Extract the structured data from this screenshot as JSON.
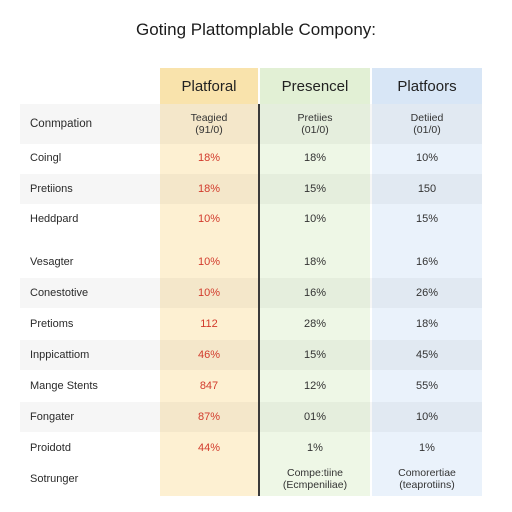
{
  "title": "Goting Plattomplable Compony:",
  "columns": [
    "Platforal",
    "Presencel",
    "Platfoors"
  ],
  "header_row": {
    "label": "Conmpation",
    "c1_line1": "Teagied",
    "c1_line2": "(91/0)",
    "c2_line1": "Pretiies",
    "c2_line2": "(01/0)",
    "c3_line1": "Detiied",
    "c3_line2": "(01/0)"
  },
  "rows": [
    {
      "label": "Coingl",
      "c1": "18%",
      "c2": "18%",
      "c3": "10%"
    },
    {
      "label": "Pretiions",
      "c1": "18%",
      "c2": "15%",
      "c3": "150"
    },
    {
      "label": "Heddpard",
      "c1": "10%",
      "c2": "10%",
      "c3": "15%"
    },
    {
      "label": "Vesagter",
      "c1": "10%",
      "c2": "18%",
      "c3": "16%"
    },
    {
      "label": "Conestotive",
      "c1": "10%",
      "c2": "16%",
      "c3": "26%"
    },
    {
      "label": "Pretioms",
      "c1": "112",
      "c2": "28%",
      "c3": "18%"
    },
    {
      "label": "Inppicattiom",
      "c1": "46%",
      "c2": "15%",
      "c3": "45%"
    },
    {
      "label": "Mange Stents",
      "c1": "847",
      "c2": "12%",
      "c3": "55%"
    },
    {
      "label": "Fongater",
      "c1": "87%",
      "c2": "01%",
      "c3": "10%"
    },
    {
      "label": "Proidotd",
      "c1": "44%",
      "c2": "1%",
      "c3": "1%"
    }
  ],
  "footer_row": {
    "label": "Sotrunger",
    "c1": "",
    "c2_line1": "Compe:tiine",
    "c2_line2": "(Ecmpeniliae)",
    "c3_line1": "Comorertiae",
    "c3_line2": "(teaprotiins)"
  }
}
